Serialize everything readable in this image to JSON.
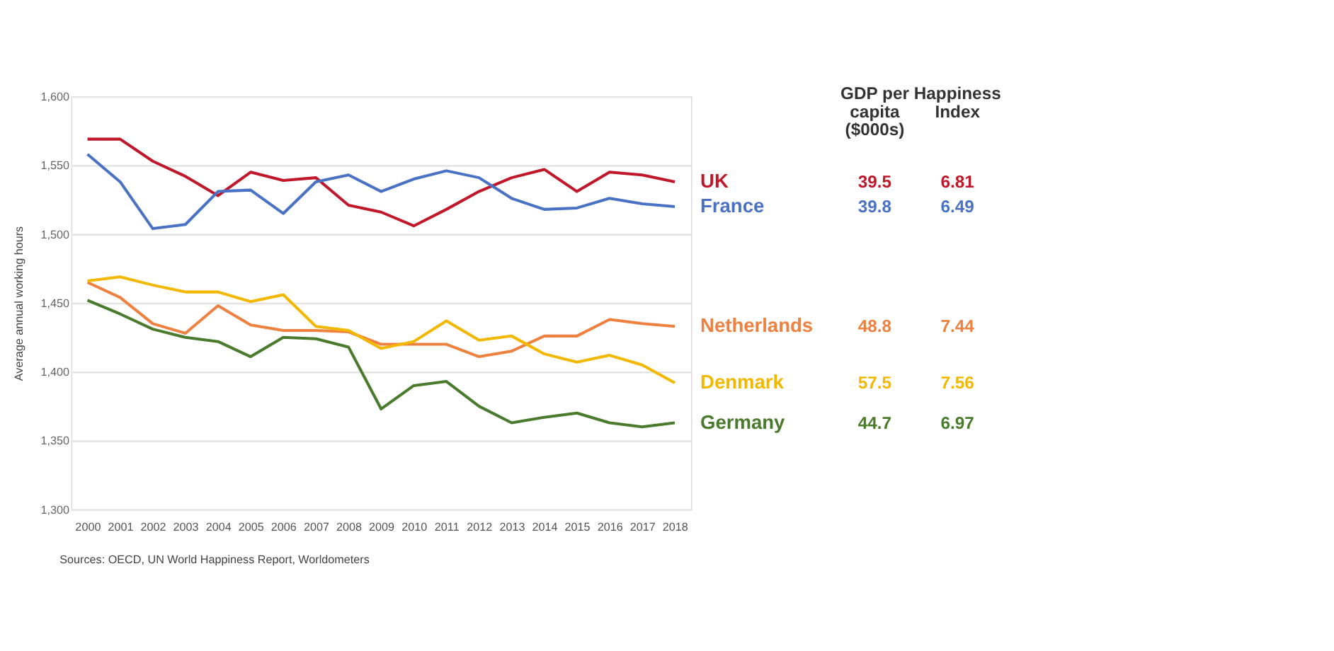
{
  "chart_data": {
    "type": "line",
    "ylabel": "Average annual working hours",
    "x": [
      2000,
      2001,
      2002,
      2003,
      2004,
      2005,
      2006,
      2007,
      2008,
      2009,
      2010,
      2011,
      2012,
      2013,
      2014,
      2015,
      2016,
      2017,
      2018
    ],
    "xlim": [
      1999.5,
      2018.5
    ],
    "xticks": [
      2000,
      2001,
      2002,
      2003,
      2004,
      2005,
      2006,
      2007,
      2008,
      2009,
      2010,
      2011,
      2012,
      2013,
      2014,
      2015,
      2016,
      2017,
      2018
    ],
    "ylim": [
      1300,
      1600
    ],
    "yticks": [
      {
        "value": 1300,
        "label": "1,300"
      },
      {
        "value": 1350,
        "label": "1,350"
      },
      {
        "value": 1400,
        "label": "1,400"
      },
      {
        "value": 1450,
        "label": "1,450"
      },
      {
        "value": 1500,
        "label": "1,500"
      },
      {
        "value": 1550,
        "label": "1,550"
      },
      {
        "value": 1600,
        "label": "1,600"
      }
    ],
    "grid": "y",
    "legend": false,
    "line_style": "solid",
    "marker": "none",
    "series": [
      {
        "name": "UK",
        "color": "#c0182a",
        "values": [
          1569,
          1569,
          1553,
          1542,
          1528,
          1545,
          1539,
          1541,
          1521,
          1516,
          1506,
          1518,
          1531,
          1541,
          1547,
          1531,
          1545,
          1543,
          1538
        ]
      },
      {
        "name": "France",
        "color": "#4a72c4",
        "values": [
          1558,
          1538,
          1504,
          1507,
          1531,
          1532,
          1515,
          1538,
          1543,
          1531,
          1540,
          1546,
          1541,
          1526,
          1518,
          1519,
          1526,
          1522,
          1520
        ]
      },
      {
        "name": "Netherlands",
        "color": "#ee8040",
        "values": [
          1465,
          1454,
          1435,
          1428,
          1448,
          1434,
          1430,
          1430,
          1429,
          1420,
          1420,
          1420,
          1411,
          1415,
          1426,
          1426,
          1438,
          1435,
          1433
        ]
      },
      {
        "name": "Denmark",
        "color": "#f2b800",
        "values": [
          1466,
          1469,
          1463,
          1458,
          1458,
          1451,
          1456,
          1433,
          1430,
          1417,
          1422,
          1437,
          1423,
          1426,
          1413,
          1407,
          1412,
          1405,
          1392
        ]
      },
      {
        "name": "Germany",
        "color": "#4a7a2c",
        "values": [
          1452,
          1442,
          1431,
          1425,
          1422,
          1411,
          1425,
          1424,
          1418,
          1373,
          1390,
          1393,
          1375,
          1363,
          1367,
          1370,
          1363,
          1360,
          1363
        ]
      }
    ],
    "annotations": [
      "Sources: OECD, UN World Happiness Report, Worldometers",
      "GDP per\ncapita\n($000s)",
      "Happiness\nIndex",
      "39.5",
      "6.81",
      "39.8",
      "6.49",
      "48.8",
      "7.44",
      "57.5",
      "7.56",
      "44.7",
      "6.97"
    ]
  }
}
